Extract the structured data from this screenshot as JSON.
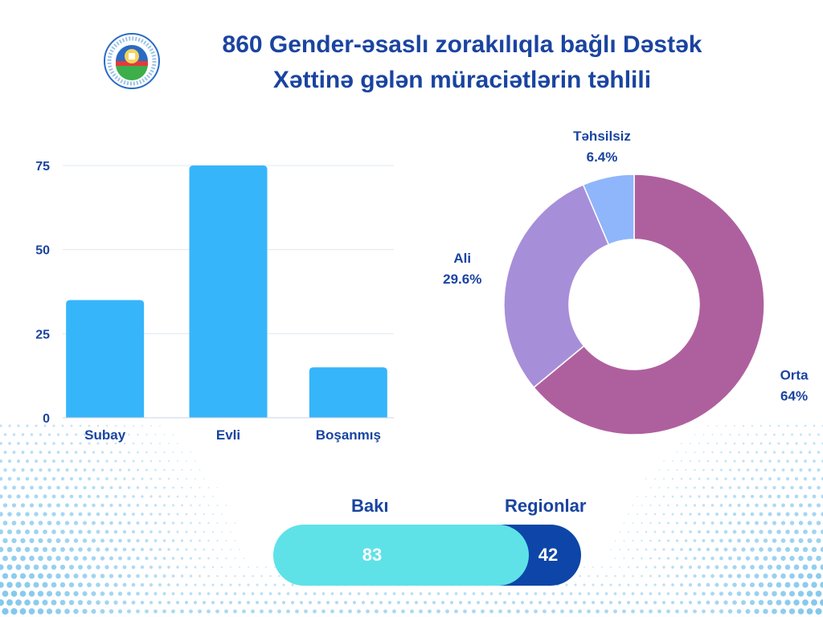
{
  "title": {
    "line1": "860 Gender-əsaslı zorakılıqla bağlı Dəstək",
    "line2": "Xəttinə gələn müraciətlərin təhlili"
  },
  "colors": {
    "title": "#1a44a0",
    "bar": "#36b5fb",
    "orta": "#ae609e",
    "ali": "#a78ed9",
    "tehsilsiz": "#8fb6fb",
    "baki": "#5ee2e8",
    "regionlar": "#0d46a8"
  },
  "chart_data": [
    {
      "type": "bar",
      "categories": [
        "Subay",
        "Evli",
        "Boşanmış"
      ],
      "values": [
        35,
        75,
        15
      ],
      "ylim": [
        0,
        75
      ],
      "yticks": [
        0,
        25,
        50,
        75
      ],
      "grid": true
    },
    {
      "type": "pie",
      "donut": true,
      "slices": [
        {
          "label": "Orta",
          "value": 64,
          "value_label": "64%"
        },
        {
          "label": "Ali",
          "value": 29.6,
          "value_label": "29.6%"
        },
        {
          "label": "Təhsilsiz",
          "value": 6.4,
          "value_label": "6.4%"
        }
      ]
    },
    {
      "type": "bar",
      "orientation": "stacked-horizontal",
      "categories": [
        "Bakı",
        "Regionlar"
      ],
      "values": [
        83,
        42
      ]
    }
  ]
}
